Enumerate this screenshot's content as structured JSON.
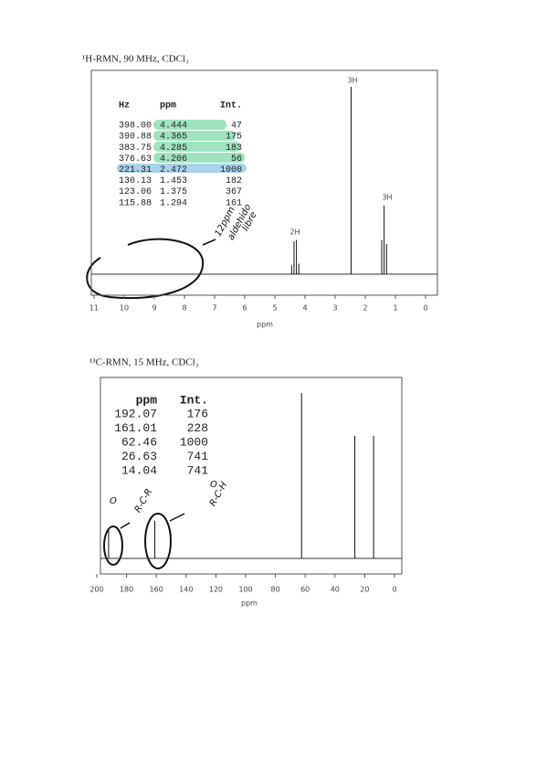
{
  "spectra": [
    {
      "title": "¹H-RMN, 90 MHz, CDCl₃",
      "columns": [
        "Hz",
        "ppm",
        "Int."
      ],
      "rows": [
        [
          "398.00",
          "4.444",
          "47"
        ],
        [
          "390.88",
          "4.365",
          "175"
        ],
        [
          "383.75",
          "4.285",
          "183"
        ],
        [
          "376.63",
          "4.206",
          "56"
        ],
        [
          "221.31",
          "2.472",
          "1000"
        ],
        [
          "130.13",
          "1.453",
          "182"
        ],
        [
          "123.06",
          "1.375",
          "367"
        ],
        [
          "115.88",
          "1.294",
          "161"
        ]
      ],
      "xticks": [
        11,
        10,
        9,
        8,
        7,
        6,
        5,
        4,
        3,
        2,
        1,
        0
      ],
      "xlabel": "ppm",
      "peak_labels": [
        "3H",
        "2H",
        "3H"
      ],
      "annotations": [
        "12ppm",
        "aldehido",
        "libre"
      ]
    },
    {
      "title": "¹³C-RMN, 15 MHz, CDCl₃",
      "columns": [
        "ppm",
        "Int."
      ],
      "rows": [
        [
          "192.07",
          "176"
        ],
        [
          "161.01",
          "228"
        ],
        [
          "62.46",
          "1000"
        ],
        [
          "26.63",
          "741"
        ],
        [
          "14.04",
          "741"
        ]
      ],
      "xticks": [
        200,
        180,
        160,
        140,
        120,
        100,
        80,
        60,
        40,
        20,
        0
      ],
      "xlabel": "ppm",
      "annotations": [
        "O",
        "R-C-R",
        "O",
        "R-C-H"
      ]
    }
  ]
}
